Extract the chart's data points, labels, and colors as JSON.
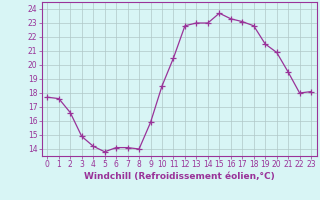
{
  "x": [
    0,
    1,
    2,
    3,
    4,
    5,
    6,
    7,
    8,
    9,
    10,
    11,
    12,
    13,
    14,
    15,
    16,
    17,
    18,
    19,
    20,
    21,
    22,
    23
  ],
  "y": [
    17.7,
    17.6,
    16.6,
    14.9,
    14.2,
    13.8,
    14.1,
    14.1,
    14.0,
    15.9,
    18.5,
    20.5,
    22.8,
    23.0,
    23.0,
    23.7,
    23.3,
    23.1,
    22.8,
    21.5,
    20.9,
    19.5,
    18.0,
    18.1
  ],
  "line_color": "#993399",
  "marker": "+",
  "marker_size": 4,
  "bg_color": "#d8f5f5",
  "grid_color": "#b0c8c8",
  "xlabel": "Windchill (Refroidissement éolien,°C)",
  "ylabel": "",
  "xlim": [
    -0.5,
    23.5
  ],
  "ylim": [
    13.5,
    24.5
  ],
  "yticks": [
    14,
    15,
    16,
    17,
    18,
    19,
    20,
    21,
    22,
    23,
    24
  ],
  "xticks": [
    0,
    1,
    2,
    3,
    4,
    5,
    6,
    7,
    8,
    9,
    10,
    11,
    12,
    13,
    14,
    15,
    16,
    17,
    18,
    19,
    20,
    21,
    22,
    23
  ],
  "tick_label_fontsize": 5.5,
  "xlabel_fontsize": 6.5
}
